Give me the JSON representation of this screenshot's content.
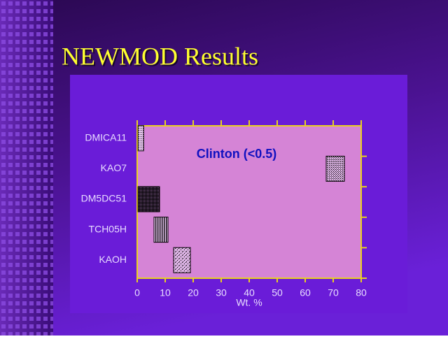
{
  "title": "NEWMOD Results",
  "chart_data": {
    "type": "range-bar",
    "categories": [
      "DMICA11",
      "KAO7",
      "DM5DC51",
      "TCH05H",
      "KAOH"
    ],
    "values": [
      [
        0.3,
        2.3
      ],
      [
        67.5,
        74
      ],
      [
        0.3,
        8
      ],
      [
        6,
        11
      ],
      [
        13,
        19
      ]
    ],
    "annotation": "Clinton (<0.5)",
    "xlabel": "Wt. %",
    "xlim": [
      0,
      80
    ],
    "xticks": [
      0,
      10,
      20,
      30,
      40,
      50,
      60,
      70,
      80
    ]
  }
}
